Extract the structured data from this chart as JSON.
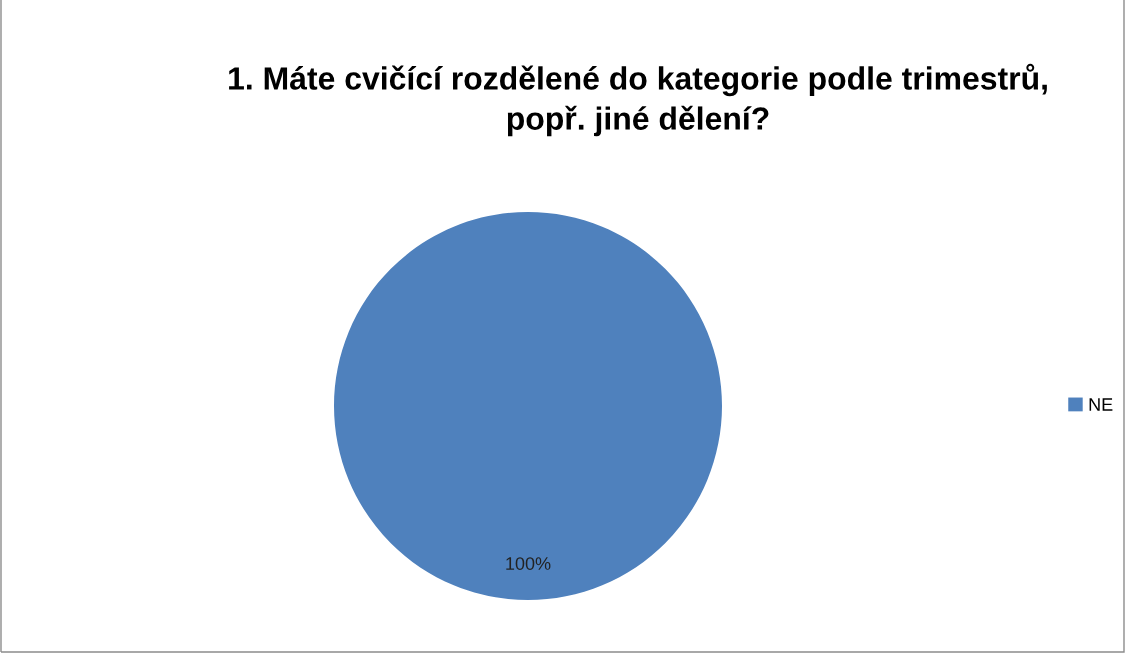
{
  "chart_data": {
    "type": "pie",
    "title": "1. Máte cvičící rozdělené do kategorie podle trimestrů, popř. jiné dělení?",
    "categories": [
      "NE"
    ],
    "values": [
      100
    ],
    "colors": [
      "#4f81bd"
    ],
    "value_labels": [
      "100%"
    ],
    "legend": "right"
  }
}
